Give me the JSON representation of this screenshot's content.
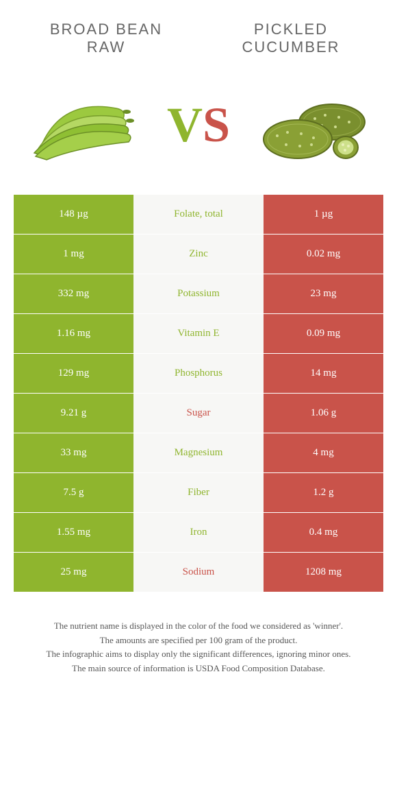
{
  "colors": {
    "left": "#8fb52e",
    "right": "#c9534a",
    "mid_bg": "#f7f7f5",
    "text": "#555555"
  },
  "header": {
    "left_line1": "BROAD BEAN",
    "left_line2": "RAW",
    "right_line1": "PICKLED",
    "right_line2": "CUCUMBER"
  },
  "vs": {
    "v": "V",
    "s": "S"
  },
  "rows": [
    {
      "left": "148 µg",
      "label": "Folate, total",
      "right": "1 µg",
      "winner": "left"
    },
    {
      "left": "1 mg",
      "label": "Zinc",
      "right": "0.02 mg",
      "winner": "left"
    },
    {
      "left": "332 mg",
      "label": "Potassium",
      "right": "23 mg",
      "winner": "left"
    },
    {
      "left": "1.16 mg",
      "label": "Vitamin E",
      "right": "0.09 mg",
      "winner": "left"
    },
    {
      "left": "129 mg",
      "label": "Phosphorus",
      "right": "14 mg",
      "winner": "left"
    },
    {
      "left": "9.21 g",
      "label": "Sugar",
      "right": "1.06 g",
      "winner": "right"
    },
    {
      "left": "33 mg",
      "label": "Magnesium",
      "right": "4 mg",
      "winner": "left"
    },
    {
      "left": "7.5 g",
      "label": "Fiber",
      "right": "1.2 g",
      "winner": "left"
    },
    {
      "left": "1.55 mg",
      "label": "Iron",
      "right": "0.4 mg",
      "winner": "left"
    },
    {
      "left": "25 mg",
      "label": "Sodium",
      "right": "1208 mg",
      "winner": "right"
    }
  ],
  "footer": {
    "l1": "The nutrient name is displayed in the color of the food we considered as 'winner'.",
    "l2": "The amounts are specified per 100 gram of the product.",
    "l3": "The infographic aims to display only the significant differences, ignoring minor ones.",
    "l4": "The main source of information is USDA Food Composition Database."
  }
}
